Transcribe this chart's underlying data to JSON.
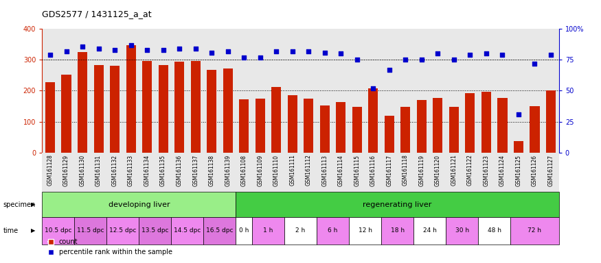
{
  "title": "GDS2577 / 1431125_a_at",
  "samples": [
    "GSM161128",
    "GSM161129",
    "GSM161130",
    "GSM161131",
    "GSM161132",
    "GSM161133",
    "GSM161134",
    "GSM161135",
    "GSM161136",
    "GSM161137",
    "GSM161138",
    "GSM161139",
    "GSM161108",
    "GSM161109",
    "GSM161110",
    "GSM161111",
    "GSM161112",
    "GSM161113",
    "GSM161114",
    "GSM161115",
    "GSM161116",
    "GSM161117",
    "GSM161118",
    "GSM161119",
    "GSM161120",
    "GSM161121",
    "GSM161122",
    "GSM161123",
    "GSM161124",
    "GSM161125",
    "GSM161126",
    "GSM161127"
  ],
  "counts": [
    228,
    252,
    325,
    284,
    281,
    347,
    296,
    283,
    295,
    297,
    267,
    271,
    173,
    175,
    213,
    185,
    174,
    152,
    163,
    148,
    207,
    119,
    147,
    170,
    176,
    147,
    193,
    197,
    176,
    38,
    150,
    200
  ],
  "percentiles": [
    79,
    82,
    86,
    84,
    83,
    87,
    83,
    83,
    84,
    84,
    81,
    82,
    77,
    77,
    82,
    82,
    82,
    81,
    80,
    75,
    52,
    67,
    75,
    75,
    80,
    75,
    79,
    80,
    79,
    31,
    72,
    79
  ],
  "specimen_groups": [
    {
      "label": "developing liver",
      "start": 0,
      "end": 12,
      "color": "#99ee88"
    },
    {
      "label": "regenerating liver",
      "start": 12,
      "end": 32,
      "color": "#44cc44"
    }
  ],
  "time_groups": [
    {
      "label": "10.5 dpc",
      "start": 0,
      "end": 2,
      "color": "#ee88ee"
    },
    {
      "label": "11.5 dpc",
      "start": 2,
      "end": 4,
      "color": "#dd77dd"
    },
    {
      "label": "12.5 dpc",
      "start": 4,
      "end": 6,
      "color": "#ee88ee"
    },
    {
      "label": "13.5 dpc",
      "start": 6,
      "end": 8,
      "color": "#dd77dd"
    },
    {
      "label": "14.5 dpc",
      "start": 8,
      "end": 10,
      "color": "#ee88ee"
    },
    {
      "label": "16.5 dpc",
      "start": 10,
      "end": 12,
      "color": "#dd77dd"
    },
    {
      "label": "0 h",
      "start": 12,
      "end": 13,
      "color": "#ffffff"
    },
    {
      "label": "1 h",
      "start": 13,
      "end": 15,
      "color": "#ee88ee"
    },
    {
      "label": "2 h",
      "start": 15,
      "end": 17,
      "color": "#ffffff"
    },
    {
      "label": "6 h",
      "start": 17,
      "end": 19,
      "color": "#ee88ee"
    },
    {
      "label": "12 h",
      "start": 19,
      "end": 21,
      "color": "#ffffff"
    },
    {
      "label": "18 h",
      "start": 21,
      "end": 23,
      "color": "#ee88ee"
    },
    {
      "label": "24 h",
      "start": 23,
      "end": 25,
      "color": "#ffffff"
    },
    {
      "label": "30 h",
      "start": 25,
      "end": 27,
      "color": "#ee88ee"
    },
    {
      "label": "48 h",
      "start": 27,
      "end": 29,
      "color": "#ffffff"
    },
    {
      "label": "72 h",
      "start": 29,
      "end": 32,
      "color": "#ee88ee"
    }
  ],
  "bar_color": "#cc2200",
  "dot_color": "#0000cc",
  "left_ylim": [
    0,
    400
  ],
  "right_ylim": [
    0,
    100
  ],
  "left_yticks": [
    0,
    100,
    200,
    300,
    400
  ],
  "right_yticks": [
    0,
    25,
    50,
    75,
    100
  ],
  "right_yticklabels": [
    "0",
    "25",
    "50",
    "75",
    "100%"
  ],
  "bg_color": "#e8e8e8",
  "grid_color": "#000000",
  "bar_width": 0.6
}
